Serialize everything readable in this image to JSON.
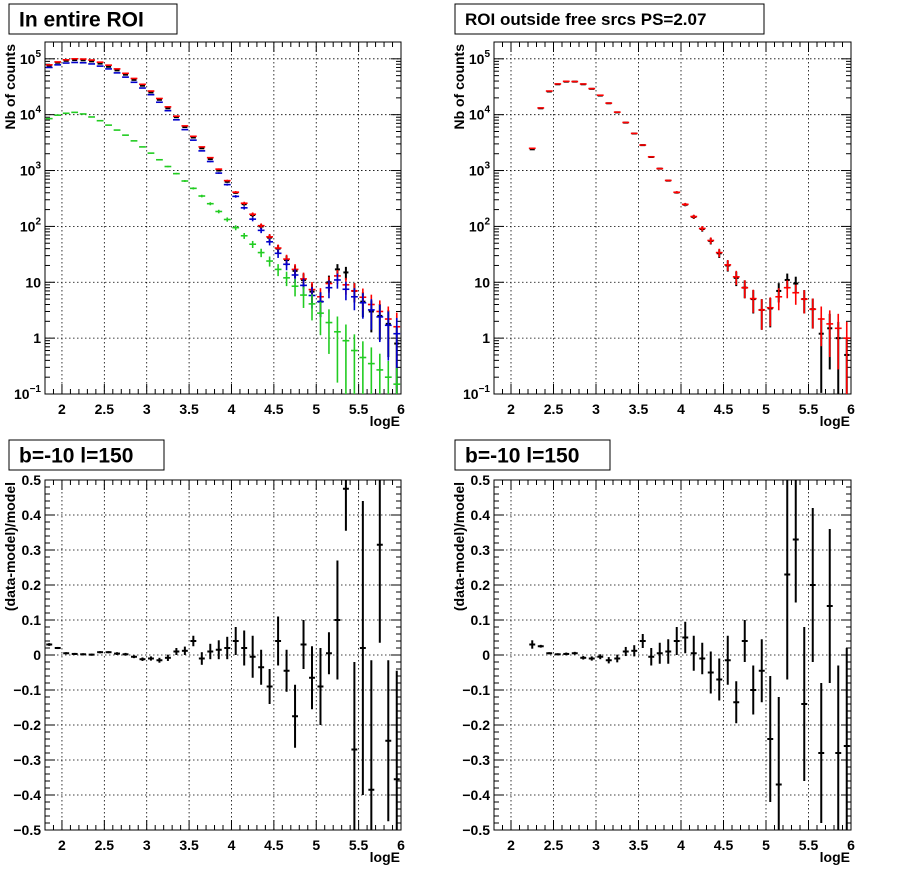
{
  "chart_data": [
    {
      "type": "scatter",
      "title": "In entire ROI",
      "xlabel": "logE",
      "ylabel": "Nb of counts",
      "yscale": "log",
      "xlim": [
        1.8,
        6.0
      ],
      "ylim": [
        0.1,
        200000
      ],
      "grid": true,
      "xticks": [
        "2",
        "2.5",
        "3",
        "3.5",
        "4",
        "4.5",
        "5",
        "5.5",
        "6"
      ],
      "yticks": [
        {
          "v": 0.1,
          "mant": "10",
          "exp": "−1"
        },
        {
          "v": 1,
          "mant": "1",
          "exp": ""
        },
        {
          "v": 10,
          "mant": "10",
          "exp": ""
        },
        {
          "v": 100,
          "mant": "10",
          "exp": "2"
        },
        {
          "v": 1000,
          "mant": "10",
          "exp": "3"
        },
        {
          "v": 10000,
          "mant": "10",
          "exp": "4"
        },
        {
          "v": 100000,
          "mant": "10",
          "exp": "5"
        }
      ],
      "colors": {
        "data": "#000000",
        "model": "#ff0000",
        "component_blue": "#0000cc",
        "component_green": "#22cc22"
      },
      "series": [
        {
          "role": "data",
          "color": "#000000",
          "x": [
            1.85,
            1.95,
            2.05,
            2.15,
            2.25,
            2.35,
            2.45,
            2.55,
            2.65,
            2.75,
            2.85,
            2.95,
            3.05,
            3.15,
            3.25,
            3.35,
            3.45,
            3.55,
            3.65,
            3.75,
            3.85,
            3.95,
            4.05,
            4.15,
            4.25,
            4.35,
            4.45,
            4.55,
            4.65,
            4.75,
            4.85,
            4.95,
            5.05,
            5.15,
            5.25,
            5.35,
            5.45,
            5.55,
            5.65,
            5.75,
            5.85,
            5.95
          ],
          "y": [
            75000,
            85000,
            92000,
            95000,
            94000,
            90000,
            82000,
            72000,
            62000,
            52000,
            42000,
            33000,
            25000,
            18500,
            13000,
            9000,
            6000,
            3900,
            2500,
            1600,
            1000,
            630,
            400,
            250,
            160,
            100,
            63,
            40,
            25,
            16,
            11,
            6.8,
            4.5,
            10,
            17,
            15,
            7,
            4.5,
            3,
            2.5,
            1.8,
            0.8
          ]
        },
        {
          "role": "model",
          "color": "#ff0000",
          "x": [
            1.85,
            1.95,
            2.05,
            2.15,
            2.25,
            2.35,
            2.45,
            2.55,
            2.65,
            2.75,
            2.85,
            2.95,
            3.05,
            3.15,
            3.25,
            3.35,
            3.45,
            3.55,
            3.65,
            3.75,
            3.85,
            3.95,
            4.05,
            4.15,
            4.25,
            4.35,
            4.45,
            4.55,
            4.65,
            4.75,
            4.85,
            4.95,
            5.05,
            5.15,
            5.25,
            5.35,
            5.45,
            5.55,
            5.65,
            5.75,
            5.85,
            5.95
          ],
          "y": [
            78000,
            88000,
            96000,
            100000,
            99000,
            95000,
            87000,
            77000,
            66000,
            55000,
            44500,
            35000,
            26500,
            19500,
            13800,
            9400,
            6300,
            4100,
            2650,
            1700,
            1060,
            660,
            410,
            260,
            165,
            103,
            65,
            41,
            26,
            17,
            11.5,
            7.4,
            5.5,
            9.5,
            13,
            9,
            7,
            5.4,
            4,
            3,
            2.2,
            1.6
          ]
        },
        {
          "role": "component",
          "color": "#0000cc",
          "x": [
            1.85,
            1.95,
            2.05,
            2.15,
            2.25,
            2.35,
            2.45,
            2.55,
            2.65,
            2.75,
            2.85,
            2.95,
            3.05,
            3.15,
            3.25,
            3.35,
            3.45,
            3.55,
            3.65,
            3.75,
            3.85,
            3.95,
            4.05,
            4.15,
            4.25,
            4.35,
            4.45,
            4.55,
            4.65,
            4.75,
            4.85,
            4.95,
            5.05,
            5.15,
            5.25,
            5.35,
            5.45,
            5.55,
            5.65,
            5.75,
            5.85,
            5.95
          ],
          "y": [
            70000,
            78000,
            84000,
            86000,
            85000,
            81000,
            74000,
            66000,
            56000,
            47000,
            38000,
            30000,
            22800,
            16700,
            11800,
            8100,
            5400,
            3500,
            2250,
            1450,
            900,
            560,
            345,
            215,
            135,
            85,
            53,
            33,
            21,
            13.5,
            8.8,
            5.8,
            4.5,
            8,
            11,
            7.5,
            5.5,
            4.3,
            3.2,
            2.4,
            1.7,
            1.2
          ]
        },
        {
          "role": "component",
          "color": "#22cc22",
          "x": [
            1.85,
            1.95,
            2.05,
            2.15,
            2.25,
            2.35,
            2.45,
            2.55,
            2.65,
            2.75,
            2.85,
            2.95,
            3.05,
            3.15,
            3.25,
            3.35,
            3.45,
            3.55,
            3.65,
            3.75,
            3.85,
            3.95,
            4.05,
            4.15,
            4.25,
            4.35,
            4.45,
            4.55,
            4.65,
            4.75,
            4.85,
            4.95,
            5.05,
            5.15,
            5.25,
            5.35,
            5.45,
            5.55,
            5.65,
            5.75,
            5.85,
            5.95
          ],
          "y": [
            8500,
            9800,
            10600,
            11000,
            10300,
            9100,
            7800,
            6500,
            5300,
            4300,
            3400,
            2650,
            2050,
            1560,
            1180,
            880,
            650,
            480,
            350,
            255,
            185,
            133,
            95,
            68,
            48,
            34,
            24,
            17,
            12,
            8.5,
            5.9,
            4.1,
            2.8,
            1.9,
            1.3,
            0.9,
            0.6,
            0.45,
            0.35,
            0.27,
            0.2,
            0.15
          ]
        }
      ]
    },
    {
      "type": "scatter",
      "title": "ROI outside free srcs PS=2.07",
      "xlabel": "logE",
      "ylabel": "Nb of counts",
      "yscale": "log",
      "xlim": [
        1.8,
        6.0
      ],
      "ylim": [
        0.1,
        200000
      ],
      "grid": true,
      "xticks": [
        "2",
        "2.5",
        "3",
        "3.5",
        "4",
        "4.5",
        "5",
        "5.5",
        "6"
      ],
      "yticks": [
        {
          "v": 0.1,
          "mant": "10",
          "exp": "−1"
        },
        {
          "v": 1,
          "mant": "1",
          "exp": ""
        },
        {
          "v": 10,
          "mant": "10",
          "exp": ""
        },
        {
          "v": 100,
          "mant": "10",
          "exp": "2"
        },
        {
          "v": 1000,
          "mant": "10",
          "exp": "3"
        },
        {
          "v": 10000,
          "mant": "10",
          "exp": "4"
        },
        {
          "v": 100000,
          "mant": "10",
          "exp": "5"
        }
      ],
      "series": [
        {
          "role": "data",
          "color": "#000000",
          "x": [
            2.25,
            2.35,
            2.45,
            2.55,
            2.65,
            2.75,
            2.85,
            2.95,
            3.05,
            3.15,
            3.25,
            3.35,
            3.45,
            3.55,
            3.65,
            3.75,
            3.85,
            3.95,
            4.05,
            4.15,
            4.25,
            4.35,
            4.45,
            4.55,
            4.65,
            4.75,
            4.85,
            4.95,
            5.05,
            5.15,
            5.25,
            5.35,
            5.45,
            5.55,
            5.65,
            5.75,
            5.85,
            5.95
          ],
          "y": [
            2400,
            13000,
            26000,
            35000,
            39000,
            39000,
            35000,
            29000,
            22000,
            16000,
            11000,
            7200,
            4600,
            2850,
            1750,
            1080,
            660,
            405,
            245,
            148,
            90,
            55,
            33,
            20,
            12,
            8,
            5,
            3.2,
            3.4,
            7,
            11,
            9.5,
            5,
            3.3,
            1.2,
            1.5,
            1.0,
            0.5
          ]
        },
        {
          "role": "model",
          "color": "#ff0000",
          "x": [
            2.25,
            2.35,
            2.45,
            2.55,
            2.65,
            2.75,
            2.85,
            2.95,
            3.05,
            3.15,
            3.25,
            3.35,
            3.45,
            3.55,
            3.65,
            3.75,
            3.85,
            3.95,
            4.05,
            4.15,
            4.25,
            4.35,
            4.45,
            4.55,
            4.65,
            4.75,
            4.85,
            4.95,
            5.05,
            5.15,
            5.25,
            5.35,
            5.45,
            5.55,
            5.65,
            5.75,
            5.85,
            5.95
          ],
          "y": [
            2500,
            13200,
            26500,
            35500,
            39500,
            39200,
            35400,
            29300,
            22300,
            16100,
            11100,
            7250,
            4620,
            2860,
            1760,
            1085,
            665,
            408,
            248,
            150,
            92,
            56,
            34,
            20.5,
            12.5,
            8,
            5.1,
            3.2,
            3.5,
            5.5,
            8,
            6.5,
            5,
            3.3,
            2.2,
            1.8,
            1.5,
            1.0
          ]
        }
      ]
    },
    {
      "type": "scatter",
      "title": "b=-10 l=150",
      "xlabel": "logE",
      "ylabel": "(data-model)/model",
      "xlim": [
        1.8,
        6.0
      ],
      "ylim": [
        -0.5,
        0.5
      ],
      "grid": true,
      "xticks": [
        "2",
        "2.5",
        "3",
        "3.5",
        "4",
        "4.5",
        "5",
        "5.5",
        "6"
      ],
      "yticks": [
        "−0.5",
        "−0.4",
        "−0.3",
        "−0.2",
        "−0.1",
        "0",
        "0.1",
        "0.2",
        "0.3",
        "0.4",
        "0.5"
      ],
      "series": [
        {
          "role": "residual",
          "color": "#000000",
          "x": [
            1.85,
            1.95,
            2.05,
            2.15,
            2.25,
            2.35,
            2.45,
            2.55,
            2.65,
            2.75,
            2.85,
            2.95,
            3.05,
            3.15,
            3.25,
            3.35,
            3.45,
            3.55,
            3.65,
            3.75,
            3.85,
            3.95,
            4.05,
            4.15,
            4.25,
            4.35,
            4.45,
            4.55,
            4.65,
            4.75,
            4.85,
            4.95,
            5.05,
            5.15,
            5.25,
            5.35,
            5.45,
            5.55,
            5.65,
            5.75,
            5.85,
            5.95
          ],
          "y": [
            0.03,
            0.02,
            0.005,
            0.003,
            0.002,
            0.001,
            0.008,
            0.008,
            0.004,
            0.002,
            -0.005,
            -0.012,
            -0.01,
            -0.015,
            -0.008,
            0.01,
            0.012,
            0.04,
            -0.01,
            0.01,
            0.015,
            0.02,
            0.04,
            0.02,
            -0.005,
            -0.035,
            -0.09,
            0.04,
            -0.045,
            -0.175,
            0.03,
            -0.065,
            -0.09,
            0.005,
            0.1,
            0.475,
            -0.27,
            0.02,
            -0.385,
            0.315,
            -0.245,
            -0.355
          ],
          "err": [
            0.004,
            0.003,
            0.003,
            0.003,
            0.003,
            0.003,
            0.003,
            0.003,
            0.004,
            0.004,
            0.004,
            0.005,
            0.006,
            0.007,
            0.009,
            0.01,
            0.012,
            0.015,
            0.018,
            0.022,
            0.027,
            0.032,
            0.04,
            0.05,
            0.06,
            0.05,
            0.05,
            0.07,
            0.06,
            0.09,
            0.07,
            0.09,
            0.11,
            0.06,
            0.17,
            0.12,
            0.25,
            0.42,
            0.37,
            0.28,
            0.23,
            0.31
          ]
        }
      ]
    },
    {
      "type": "scatter",
      "title": "b=-10 l=150",
      "xlabel": "logE",
      "ylabel": "(data-model)/model",
      "xlim": [
        1.8,
        6.0
      ],
      "ylim": [
        -0.5,
        0.5
      ],
      "grid": true,
      "xticks": [
        "2",
        "2.5",
        "3",
        "3.5",
        "4",
        "4.5",
        "5",
        "5.5",
        "6"
      ],
      "yticks": [
        "−0.5",
        "−0.4",
        "−0.3",
        "−0.2",
        "−0.1",
        "0",
        "0.1",
        "0.2",
        "0.3",
        "0.4",
        "0.5"
      ],
      "series": [
        {
          "role": "residual",
          "color": "#000000",
          "x": [
            2.25,
            2.35,
            2.45,
            2.55,
            2.65,
            2.75,
            2.85,
            2.95,
            3.05,
            3.15,
            3.25,
            3.35,
            3.45,
            3.55,
            3.65,
            3.75,
            3.85,
            3.95,
            4.05,
            4.15,
            4.25,
            4.35,
            4.45,
            4.55,
            4.65,
            4.75,
            4.85,
            4.95,
            5.05,
            5.15,
            5.25,
            5.35,
            5.45,
            5.55,
            5.65,
            5.75,
            5.85,
            5.95
          ],
          "y": [
            0.03,
            0.025,
            0.005,
            0.002,
            0.003,
            0.005,
            -0.008,
            -0.01,
            -0.005,
            -0.015,
            -0.01,
            0.01,
            0.012,
            0.04,
            -0.005,
            0.005,
            0.01,
            0.04,
            0.05,
            0.005,
            -0.01,
            -0.05,
            -0.07,
            -0.015,
            -0.135,
            0.04,
            -0.1,
            -0.045,
            -0.24,
            -0.37,
            0.23,
            0.33,
            -0.14,
            0.2,
            -0.28,
            0.14,
            -0.28,
            -0.26
          ],
          "err": [
            0.012,
            0.004,
            0.003,
            0.003,
            0.004,
            0.004,
            0.005,
            0.006,
            0.007,
            0.009,
            0.011,
            0.013,
            0.016,
            0.02,
            0.025,
            0.03,
            0.035,
            0.04,
            0.045,
            0.05,
            0.045,
            0.06,
            0.06,
            0.07,
            0.06,
            0.06,
            0.07,
            0.09,
            0.18,
            0.25,
            0.3,
            0.18,
            0.22,
            0.22,
            0.2,
            0.22,
            0.25,
            0.28
          ]
        }
      ]
    }
  ]
}
